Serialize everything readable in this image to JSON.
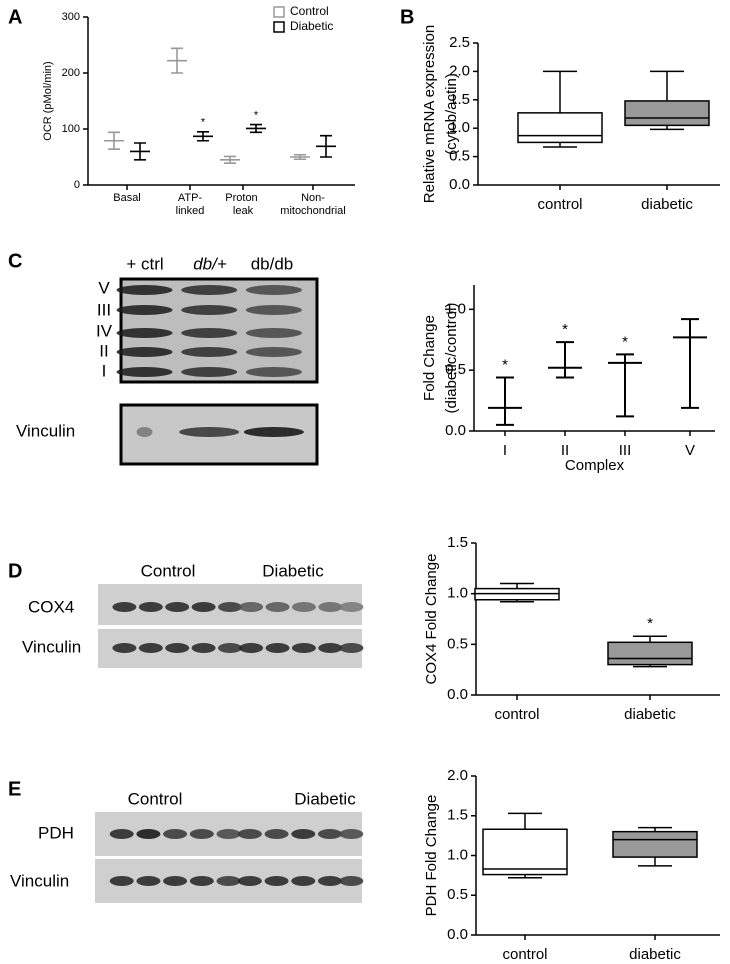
{
  "panel_labels": [
    "A",
    "B",
    "C",
    "D",
    "E"
  ],
  "blots": {
    "c": {
      "lanes": [
        "+ ctrl",
        "db/+",
        "db/db"
      ],
      "bands": [
        "V",
        "III",
        "IV",
        "II",
        "I"
      ],
      "loading": "Vinculin"
    },
    "d": {
      "groups": [
        "Control",
        "Diabetic"
      ],
      "rows": [
        "COX4",
        "Vinculin"
      ]
    },
    "e": {
      "groups": [
        "Control",
        "Diabetic"
      ],
      "rows": [
        "PDH",
        "Vinculin"
      ]
    }
  },
  "chart_data": [
    {
      "type": "errorbar",
      "ylabel": "OCR (pMol/min)",
      "categories": [
        "Basal",
        "ATP-linked",
        "Proton leak",
        "Non-mitochondrial"
      ],
      "series": [
        {
          "name": "Control",
          "color": "#999999",
          "values": [
            79,
            222,
            45,
            50
          ],
          "errors": [
            15,
            22,
            6,
            4
          ]
        },
        {
          "name": "Diabetic",
          "color": "#000000",
          "values": [
            60,
            87,
            101,
            69
          ],
          "errors": [
            15,
            8,
            7,
            19
          ]
        }
      ],
      "ylim": [
        0,
        300
      ],
      "yticks": [
        0,
        100,
        200,
        300
      ],
      "legend": "upper right",
      "annotations": [
        {
          "text": "*",
          "category": "ATP-linked",
          "series": "Diabetic"
        },
        {
          "text": "*",
          "category": "Proton leak",
          "series": "Diabetic"
        }
      ]
    },
    {
      "type": "box",
      "ylabel": [
        "Relative mRNA expression",
        "(cytob/actin)"
      ],
      "categories": [
        "control",
        "diabetic"
      ],
      "boxes": [
        {
          "color": "#ffffff",
          "min": 0.67,
          "q1": 0.75,
          "median": 0.87,
          "q3": 1.27,
          "max": 2.0
        },
        {
          "color": "#999999",
          "min": 0.98,
          "q1": 1.05,
          "median": 1.18,
          "q3": 1.48,
          "max": 2.0
        }
      ],
      "ylim": [
        0,
        2.5
      ],
      "yticks": [
        {
          "value": 0,
          "label": "0.0"
        },
        0.5,
        {
          "value": 1,
          "label": "1.0"
        },
        1.5,
        {
          "value": 2,
          "label": "2.0"
        },
        2.5
      ]
    },
    {
      "type": "errorbar",
      "xlabel": "Complex",
      "ylabel": [
        "Fold Change",
        "(diabetic/control)"
      ],
      "categories": [
        "I",
        "II",
        "III",
        "V"
      ],
      "series": [
        {
          "color": "#000000",
          "values": [
            0.19,
            0.52,
            0.56,
            0.77
          ],
          "lower": [
            0.05,
            0.44,
            0.12,
            0.19
          ],
          "upper": [
            0.44,
            0.73,
            0.63,
            0.92
          ]
        }
      ],
      "ylim": [
        0,
        1.2
      ],
      "yticks": [
        {
          "value": 0,
          "label": "0.0"
        },
        0.5,
        {
          "value": 1,
          "label": "1.0"
        }
      ],
      "annotations": [
        {
          "text": "*",
          "category": "I"
        },
        {
          "text": "*",
          "category": "II"
        },
        {
          "text": "*",
          "category": "III"
        }
      ]
    },
    {
      "type": "box",
      "ylabel": "COX4 Fold Change",
      "categories": [
        "control",
        "diabetic"
      ],
      "boxes": [
        {
          "color": "#ffffff",
          "min": 0.92,
          "q1": 0.94,
          "median": 1.0,
          "q3": 1.05,
          "max": 1.1
        },
        {
          "color": "#999999",
          "min": 0.28,
          "q1": 0.3,
          "median": 0.36,
          "q3": 0.52,
          "max": 0.58
        }
      ],
      "ylim": [
        0,
        1.5
      ],
      "yticks": [
        {
          "value": 0,
          "label": "0.0"
        },
        0.5,
        {
          "value": 1,
          "label": "1.0"
        },
        1.5
      ],
      "annotations": [
        {
          "text": "*",
          "category": "diabetic"
        }
      ]
    },
    {
      "type": "box",
      "ylabel": "PDH Fold Change",
      "categories": [
        "control",
        "diabetic"
      ],
      "boxes": [
        {
          "color": "#ffffff",
          "min": 0.72,
          "q1": 0.76,
          "median": 0.83,
          "q3": 1.33,
          "max": 1.53
        },
        {
          "color": "#999999",
          "min": 0.87,
          "q1": 0.98,
          "median": 1.2,
          "q3": 1.3,
          "max": 1.35
        }
      ],
      "ylim": [
        0,
        2.0
      ],
      "yticks": [
        {
          "value": 0,
          "label": "0.0"
        },
        0.5,
        {
          "value": 1,
          "label": "1.0"
        },
        1.5,
        {
          "value": 2,
          "label": "2.0"
        }
      ]
    }
  ]
}
